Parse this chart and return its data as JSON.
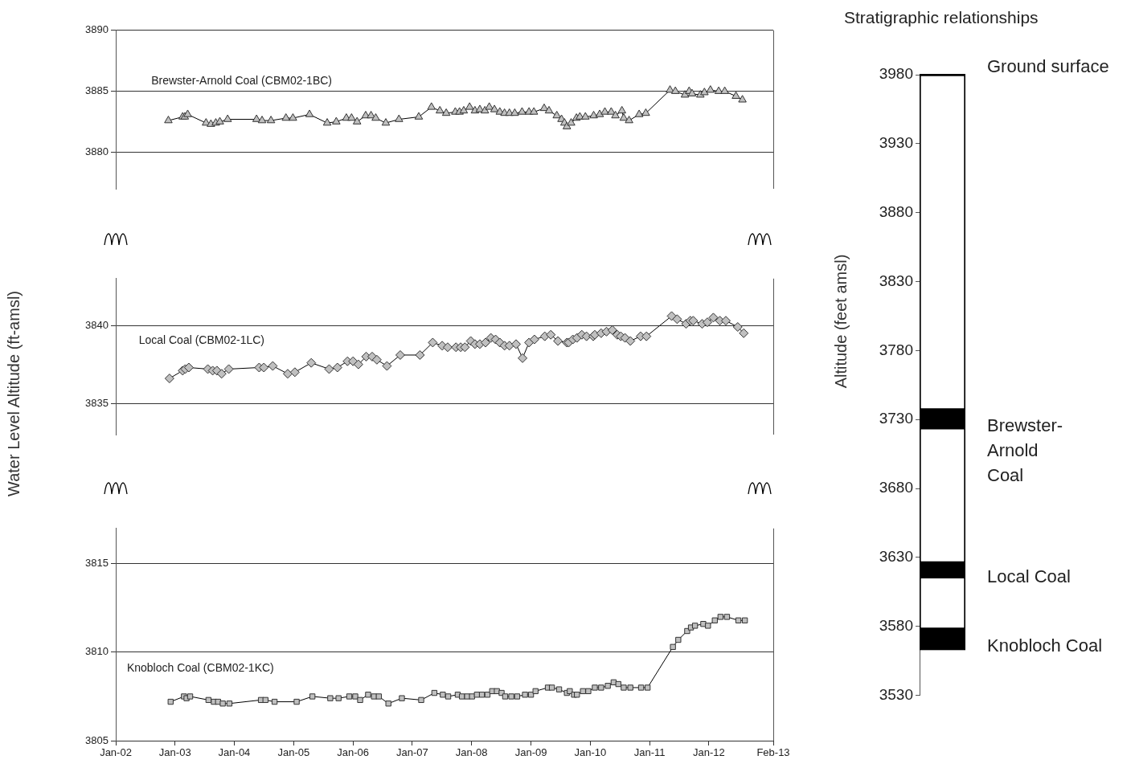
{
  "chart_data": [
    {
      "type": "line",
      "xlim": [
        "2002-01-01",
        "2013-02-01"
      ],
      "ylim": [
        3877,
        3890
      ],
      "yticks": [
        3880,
        3885,
        3890
      ],
      "grid": "y",
      "tick_labels": "y",
      "marker": "triangle",
      "x": [
        "2002-11-21",
        "2003-02-17",
        "2003-03-02",
        "2003-03-20",
        "2003-07-11",
        "2003-08-10",
        "2003-09-09",
        "2003-10-04",
        "2003-11-21",
        "2004-05-17",
        "2004-06-20",
        "2004-08-14",
        "2004-11-14",
        "2004-12-27",
        "2005-04-08",
        "2005-07-26",
        "2005-09-20",
        "2005-11-21",
        "2005-12-23",
        "2006-01-26",
        "2006-03-20",
        "2006-04-22",
        "2006-05-21",
        "2006-07-22",
        "2006-10-11",
        "2007-02-10",
        "2007-04-29",
        "2007-06-20",
        "2007-07-29",
        "2007-09-23",
        "2007-10-19",
        "2007-11-14",
        "2007-12-20",
        "2008-01-22",
        "2008-02-21",
        "2008-03-23",
        "2008-04-19",
        "2008-05-21",
        "2008-06-23",
        "2008-07-22",
        "2008-08-21",
        "2008-09-23",
        "2008-11-07",
        "2008-12-20",
        "2009-01-19",
        "2009-03-23",
        "2009-04-22",
        "2009-06-09",
        "2009-07-08",
        "2009-07-26",
        "2009-08-10",
        "2009-09-05",
        "2009-10-08",
        "2009-10-29",
        "2009-12-02",
        "2010-01-22",
        "2010-02-28",
        "2010-04-01",
        "2010-05-10",
        "2010-06-05",
        "2010-07-15",
        "2010-07-26",
        "2010-08-28",
        "2010-10-29",
        "2010-12-09",
        "2011-05-07",
        "2011-06-09",
        "2011-08-07",
        "2011-09-02",
        "2011-09-20",
        "2011-11-10",
        "2011-12-05",
        "2012-01-11",
        "2012-03-02",
        "2012-04-08",
        "2012-06-16",
        "2012-07-26"
      ],
      "series": [
        {
          "name": "Brewster-Arnold Coal (CBM02-1BC)",
          "color": "#c0c0c0",
          "values": [
            3882.6,
            3882.9,
            3882.9,
            3883.1,
            3882.4,
            3882.3,
            3882.4,
            3882.5,
            3882.7,
            3882.7,
            3882.6,
            3882.6,
            3882.8,
            3882.8,
            3883.1,
            3882.4,
            3882.5,
            3882.8,
            3882.8,
            3882.5,
            3883.0,
            3883.0,
            3882.8,
            3882.4,
            3882.7,
            3882.9,
            3883.7,
            3883.4,
            3883.2,
            3883.3,
            3883.3,
            3883.4,
            3883.7,
            3883.4,
            3883.5,
            3883.4,
            3883.7,
            3883.5,
            3883.3,
            3883.2,
            3883.2,
            3883.2,
            3883.3,
            3883.3,
            3883.3,
            3883.6,
            3883.4,
            3883.0,
            3882.7,
            3882.4,
            3882.1,
            3882.4,
            3882.8,
            3882.9,
            3882.9,
            3883.0,
            3883.1,
            3883.3,
            3883.3,
            3883.0,
            3883.4,
            3882.8,
            3882.6,
            3883.1,
            3883.2,
            3885.1,
            3885.0,
            3884.7,
            3885.0,
            3884.8,
            3884.7,
            3884.9,
            3885.1,
            3885.0,
            3885.0,
            3884.6,
            3884.3
          ]
        }
      ]
    },
    {
      "type": "line",
      "ylabel": "Water Level Altitude (ft-amsl)",
      "xlim": [
        "2002-01-01",
        "2013-02-01"
      ],
      "ylim": [
        3833,
        3843
      ],
      "yticks": [
        3835,
        3840
      ],
      "grid": "y",
      "tick_labels": "y",
      "marker": "diamond",
      "x": [
        "2002-11-28",
        "2003-02-17",
        "2003-03-05",
        "2003-03-27",
        "2003-07-22",
        "2003-08-21",
        "2003-09-16",
        "2003-10-15",
        "2003-11-28",
        "2004-06-02",
        "2004-07-01",
        "2004-08-25",
        "2004-11-25",
        "2005-01-08",
        "2005-04-19",
        "2005-08-07",
        "2005-09-27",
        "2005-11-28",
        "2006-01-01",
        "2006-02-03",
        "2006-03-23",
        "2006-04-29",
        "2006-05-28",
        "2006-07-29",
        "2006-10-19",
        "2007-02-17",
        "2007-05-07",
        "2007-07-04",
        "2007-08-07",
        "2007-09-27",
        "2007-10-26",
        "2007-11-21",
        "2007-12-27",
        "2008-01-22",
        "2008-02-21",
        "2008-03-27",
        "2008-04-29",
        "2008-05-28",
        "2008-06-23",
        "2008-07-22",
        "2008-08-21",
        "2008-10-01",
        "2008-11-10",
        "2008-12-20",
        "2009-01-22",
        "2009-03-27",
        "2009-05-03",
        "2009-06-16",
        "2009-08-10",
        "2009-08-21",
        "2009-09-16",
        "2009-10-11",
        "2009-11-10",
        "2009-12-09",
        "2010-01-19",
        "2010-01-29",
        "2010-03-09",
        "2010-04-11",
        "2010-05-17",
        "2010-06-16",
        "2010-07-08",
        "2010-08-03",
        "2010-09-05",
        "2010-11-07",
        "2010-12-13",
        "2011-05-17",
        "2011-06-20",
        "2011-08-14",
        "2011-09-09",
        "2011-09-27",
        "2011-11-21",
        "2011-12-23",
        "2012-01-29",
        "2012-03-09",
        "2012-04-15",
        "2012-06-27",
        "2012-08-03"
      ],
      "series": [
        {
          "name": "Local Coal (CBM02-1LC)",
          "color": "#c0c0c0",
          "values": [
            3836.6,
            3837.1,
            3837.2,
            3837.3,
            3837.2,
            3837.1,
            3837.1,
            3836.9,
            3837.2,
            3837.3,
            3837.3,
            3837.4,
            3836.9,
            3837.0,
            3837.6,
            3837.2,
            3837.3,
            3837.7,
            3837.7,
            3837.5,
            3838.0,
            3838.0,
            3837.8,
            3837.4,
            3838.1,
            3838.1,
            3838.9,
            3838.7,
            3838.6,
            3838.6,
            3838.6,
            3838.6,
            3839.0,
            3838.8,
            3838.8,
            3838.9,
            3839.2,
            3839.1,
            3838.9,
            3838.7,
            3838.7,
            3838.8,
            3837.9,
            3838.9,
            3839.1,
            3839.3,
            3839.4,
            3839.0,
            3838.9,
            3838.9,
            3839.1,
            3839.2,
            3839.4,
            3839.3,
            3839.3,
            3839.4,
            3839.5,
            3839.6,
            3839.7,
            3839.4,
            3839.3,
            3839.2,
            3839.0,
            3839.3,
            3839.3,
            3840.6,
            3840.4,
            3840.1,
            3840.3,
            3840.3,
            3840.1,
            3840.2,
            3840.5,
            3840.3,
            3840.3,
            3839.9,
            3839.5
          ]
        }
      ]
    },
    {
      "type": "line",
      "xlim": [
        "2002-01-01",
        "2013-02-01"
      ],
      "xticks": [
        {
          "value": "2002-01-01",
          "label": "Jan-02"
        },
        {
          "value": "2003-01-01",
          "label": "Jan-03"
        },
        {
          "value": "2004-01-01",
          "label": "Jan-04"
        },
        {
          "value": "2005-01-01",
          "label": "Jan-05"
        },
        {
          "value": "2006-01-01",
          "label": "Jan-06"
        },
        {
          "value": "2007-01-01",
          "label": "Jan-07"
        },
        {
          "value": "2008-01-01",
          "label": "Jan-08"
        },
        {
          "value": "2009-01-01",
          "label": "Jan-09"
        },
        {
          "value": "2010-01-01",
          "label": "Jan-10"
        },
        {
          "value": "2011-01-01",
          "label": "Jan-11"
        },
        {
          "value": "2012-01-01",
          "label": "Jan-12"
        },
        {
          "value": "2013-02-01",
          "label": "Feb-13"
        }
      ],
      "ylim": [
        3805,
        3817
      ],
      "yticks": [
        3805,
        3810,
        3815
      ],
      "grid": "y",
      "marker": "square",
      "x": [
        "2002-12-05",
        "2003-02-25",
        "2003-03-13",
        "2003-04-04",
        "2003-07-26",
        "2003-08-28",
        "2003-09-23",
        "2003-10-22",
        "2003-12-02",
        "2004-06-13",
        "2004-07-11",
        "2004-09-05",
        "2005-01-19",
        "2005-04-26",
        "2005-08-14",
        "2005-10-04",
        "2005-12-09",
        "2006-01-15",
        "2006-02-14",
        "2006-04-04",
        "2006-05-10",
        "2006-06-09",
        "2006-08-07",
        "2006-10-29",
        "2007-02-25",
        "2007-05-17",
        "2007-07-08",
        "2007-08-10",
        "2007-10-08",
        "2007-11-03",
        "2007-12-05",
        "2008-01-04",
        "2008-02-03",
        "2008-03-05",
        "2008-04-08",
        "2008-05-07",
        "2008-06-05",
        "2008-07-04",
        "2008-07-26",
        "2008-09-02",
        "2008-10-08",
        "2008-11-25",
        "2009-01-01",
        "2009-01-29",
        "2009-04-15",
        "2009-05-10",
        "2009-06-23",
        "2009-08-10",
        "2009-08-28",
        "2009-09-23",
        "2009-10-11",
        "2009-11-17",
        "2009-12-20",
        "2010-01-29",
        "2010-03-09",
        "2010-04-19",
        "2010-05-25",
        "2010-06-23",
        "2010-07-26",
        "2010-09-05",
        "2010-11-10",
        "2010-12-20",
        "2011-05-25",
        "2011-06-27",
        "2011-08-21",
        "2011-09-13",
        "2011-10-08",
        "2011-11-28",
        "2011-12-27",
        "2012-02-07",
        "2012-03-13",
        "2012-04-22",
        "2012-07-01",
        "2012-08-10"
      ],
      "series": [
        {
          "name": "Knobloch Coal (CBM02-1KC)",
          "color": "#c0c0c0",
          "values": [
            3807.2,
            3807.5,
            3807.4,
            3807.5,
            3807.3,
            3807.2,
            3807.2,
            3807.1,
            3807.1,
            3807.3,
            3807.3,
            3807.2,
            3807.2,
            3807.5,
            3807.4,
            3807.4,
            3807.5,
            3807.5,
            3807.3,
            3807.6,
            3807.5,
            3807.5,
            3807.1,
            3807.4,
            3807.3,
            3807.7,
            3807.6,
            3807.5,
            3807.6,
            3807.5,
            3807.5,
            3807.5,
            3807.6,
            3807.6,
            3807.6,
            3807.8,
            3807.8,
            3807.7,
            3807.5,
            3807.5,
            3807.5,
            3807.6,
            3807.6,
            3807.8,
            3808.0,
            3808.0,
            3807.9,
            3807.7,
            3807.8,
            3807.6,
            3807.6,
            3807.8,
            3807.8,
            3808.0,
            3808.0,
            3808.1,
            3808.3,
            3808.2,
            3808.0,
            3808.0,
            3808.0,
            3808.0,
            3810.3,
            3810.7,
            3811.2,
            3811.4,
            3811.5,
            3811.6,
            3811.5,
            3811.8,
            3812.0,
            3812.0,
            3811.8,
            3811.8
          ]
        }
      ]
    },
    {
      "type": "bar",
      "title": "Stratigraphic relationships",
      "ylabel": "Altitude (feet amsl)",
      "categories": [
        null
      ],
      "ylim": [
        3530,
        3980
      ],
      "yticks": [
        3530,
        3580,
        3630,
        3680,
        3730,
        3780,
        3830,
        3880,
        3930,
        3980
      ],
      "tick_labels": "y",
      "series": [
        {
          "color": "#ffffff",
          "values": [
            417
          ],
          "base": [
            3563
          ]
        },
        {
          "name": "Brewster-Arnold Coal",
          "color": "#000000",
          "values": [
            15
          ],
          "base": [
            3723
          ]
        },
        {
          "name": "Local Coal",
          "color": "#000000",
          "values": [
            12
          ],
          "base": [
            3615
          ]
        },
        {
          "name": "Knobloch Coal",
          "color": "#000000",
          "values": [
            16
          ],
          "base": [
            3563
          ]
        }
      ],
      "ref_lines": [
        {
          "axis": "y",
          "value": 3980,
          "label": "Ground surface",
          "color": "#000000"
        }
      ]
    }
  ]
}
